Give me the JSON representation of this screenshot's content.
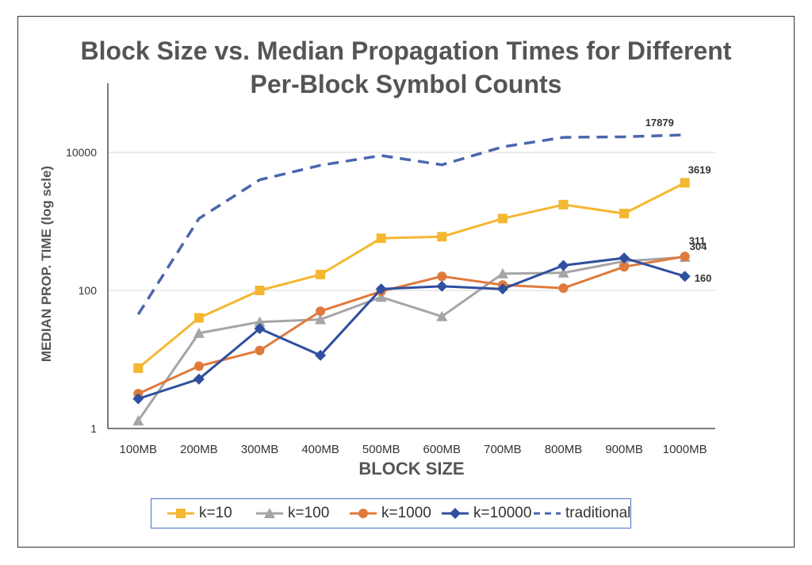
{
  "chart_data": {
    "type": "line",
    "title_line1": "Block Size vs. Median Propagation Times for Different",
    "title_line2": "Per-Block Symbol Counts",
    "xlabel": "BLOCK SIZE",
    "ylabel": "MEDIAN PROP. TIME (log scle)",
    "yscale": "log",
    "ylim": [
      1,
      100000
    ],
    "yticks": [
      1,
      100,
      10000
    ],
    "ytick_labels": [
      "1",
      "100",
      "10000"
    ],
    "grid": "horizontal",
    "legend_position": "bottom",
    "categories": [
      "100MB",
      "200MB",
      "300MB",
      "400MB",
      "500MB",
      "600MB",
      "700MB",
      "800MB",
      "900MB",
      "1000MB"
    ],
    "series": [
      {
        "name": "k=10",
        "color": "#f4b731",
        "marker": "square",
        "dashed": false,
        "values": [
          7.5,
          40,
          100,
          170,
          570,
          600,
          1100,
          1750,
          1300,
          3619
        ]
      },
      {
        "name": "k=100",
        "color": "#a5a5a5",
        "marker": "triangle",
        "dashed": false,
        "values": [
          1.3,
          24,
          35,
          38,
          80,
          42,
          175,
          180,
          265,
          304
        ]
      },
      {
        "name": "k=1000",
        "color": "#e07a3c",
        "marker": "circle",
        "dashed": false,
        "values": [
          3.2,
          8,
          13.5,
          50,
          97,
          160,
          120,
          108,
          220,
          311
        ]
      },
      {
        "name": "k=10000",
        "color": "#2f4f9f",
        "marker": "diamond",
        "dashed": false,
        "values": [
          2.7,
          5.2,
          28,
          11.5,
          105,
          115,
          105,
          230,
          295,
          160
        ]
      },
      {
        "name": "traditional",
        "color": "#4a66ad",
        "marker": "none",
        "dashed": true,
        "values": [
          45,
          1100,
          4000,
          6500,
          9000,
          6600,
          12000,
          16500,
          16800,
          17879
        ]
      }
    ],
    "annotations": [
      {
        "series": "traditional",
        "label": "17879"
      },
      {
        "series": "k=10",
        "label": "3619"
      },
      {
        "series": "k=1000",
        "label": "311"
      },
      {
        "series": "k=100",
        "label": "304"
      },
      {
        "series": "k=10000",
        "label": "160"
      }
    ]
  }
}
